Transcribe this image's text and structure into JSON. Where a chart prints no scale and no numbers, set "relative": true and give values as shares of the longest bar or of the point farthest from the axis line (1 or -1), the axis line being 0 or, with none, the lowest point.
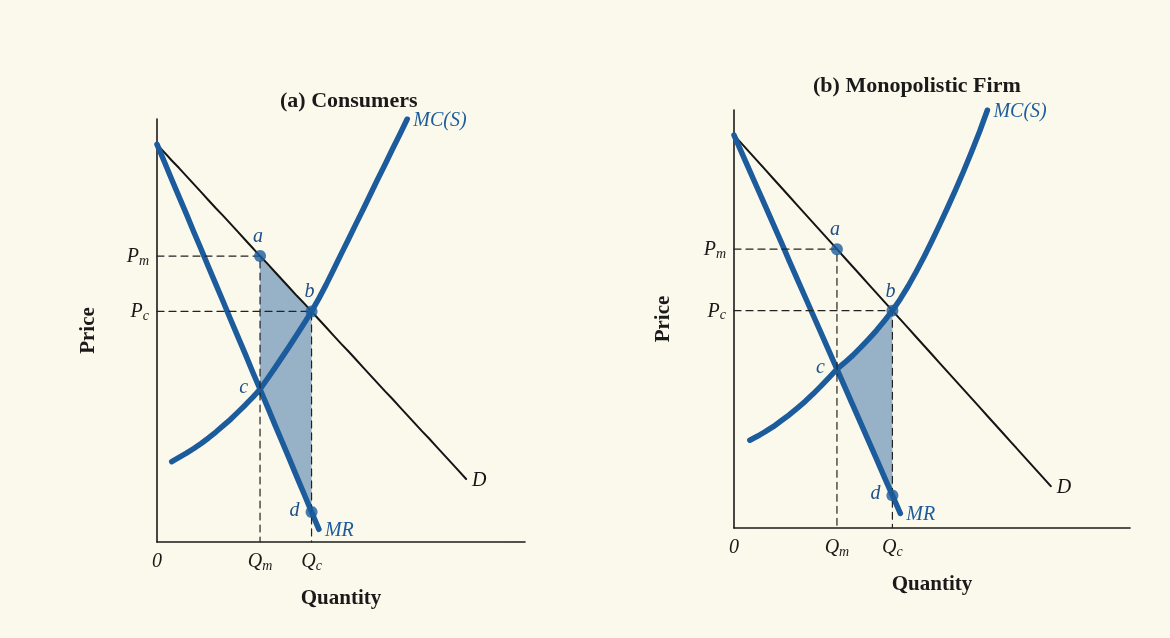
{
  "chart_data": [
    {
      "type": "line",
      "title": "(a) Consumers",
      "xlabel": "Quantity",
      "ylabel": "Price",
      "relative": true,
      "categories": [
        "0",
        null,
        null,
        null,
        null,
        null,
        null,
        null,
        null,
        null,
        null,
        null,
        null,
        null,
        "Q$_{m}$",
        null,
        null,
        null,
        null,
        null,
        null,
        "Q$_{c}$",
        null,
        null,
        null,
        null,
        null,
        null,
        null,
        null,
        null,
        null,
        null,
        null,
        null,
        null,
        null,
        null,
        null,
        null,
        null,
        null,
        null,
        null,
        null,
        null,
        null,
        null,
        null,
        null,
        null
      ],
      "series": [
        {
          "name": "D",
          "color": "#141414",
          "values": [
            0.94,
            0.921,
            0.902,
            0.884,
            0.865,
            0.846,
            0.827,
            0.808,
            0.789,
            0.771,
            0.752,
            0.733,
            0.714,
            0.695,
            0.676,
            0.658,
            0.639,
            0.62,
            0.601,
            0.582,
            0.564,
            0.545,
            0.526,
            0.507,
            0.488,
            0.469,
            0.451,
            0.432,
            0.413,
            0.394,
            0.375,
            0.356,
            0.338,
            0.319,
            0.3,
            0.281,
            0.262,
            0.244,
            0.225,
            0.206,
            0.187,
            0.168,
            0.149,
            null,
            null,
            null,
            null,
            null,
            null,
            null,
            null
          ]
        },
        {
          "name": "MR",
          "color": "#1d5c9c",
          "values": [
            0.94,
            0.899,
            0.857,
            0.816,
            0.775,
            0.733,
            0.692,
            0.65,
            0.609,
            0.568,
            0.526,
            0.485,
            0.444,
            0.402,
            0.361,
            0.32,
            0.278,
            0.237,
            0.196,
            0.154,
            0.113,
            0.071,
            0.03,
            null,
            null,
            null,
            null,
            null,
            null,
            null,
            null,
            null,
            null,
            null,
            null,
            null,
            null,
            null,
            null,
            null,
            null,
            null,
            null,
            null,
            null,
            null,
            null,
            null,
            null,
            null,
            null
          ],
          "upper": [
            null,
            null,
            null,
            null,
            null,
            null,
            null,
            null,
            null,
            null,
            null,
            null,
            null,
            null,
            0.676,
            0.658,
            0.639,
            0.62,
            0.601,
            0.582,
            0.564,
            0.545,
            null,
            null,
            null,
            null,
            null,
            null,
            null,
            null,
            null,
            null,
            null,
            null,
            null,
            null,
            null,
            null,
            null,
            null,
            null,
            null,
            null,
            null,
            null,
            null,
            null,
            null,
            null,
            null,
            null
          ],
          "lower": [
            null,
            null,
            null,
            null,
            null,
            null,
            null,
            null,
            null,
            null,
            null,
            null,
            null,
            null,
            0.361,
            0.32,
            0.278,
            0.237,
            0.196,
            0.154,
            0.113,
            0.071,
            null,
            null,
            null,
            null,
            null,
            null,
            null,
            null,
            null,
            null,
            null,
            null,
            null,
            null,
            null,
            null,
            null,
            null,
            null,
            null,
            null,
            null,
            null,
            null,
            null,
            null,
            null,
            null,
            null
          ]
        },
        {
          "name": "MC(S)",
          "color": "#1d5c9c",
          "values": [
            null,
            null,
            0.19,
            0.2,
            0.21,
            0.221,
            0.233,
            0.246,
            0.26,
            0.275,
            0.29,
            0.307,
            0.324,
            0.342,
            0.361,
            0.386,
            0.411,
            0.437,
            0.463,
            0.49,
            0.517,
            0.545,
            0.576,
            0.609,
            0.644,
            0.68,
            0.715,
            0.751,
            0.786,
            0.822,
            0.858,
            0.893,
            0.929,
            0.964,
            1.0,
            null,
            null,
            null,
            null,
            null,
            null,
            null,
            null,
            null,
            null,
            null,
            null,
            null,
            null,
            null,
            null
          ]
        },
        {
          "color": "#222222",
          "line_style": "dashed",
          "x": [
            "0",
            "Q$_{m}$",
            "Q$_{m}$"
          ],
          "values": [
            0.676,
            0.676,
            0
          ]
        },
        {
          "color": "#222222",
          "line_style": "dashed",
          "x": [
            "0",
            "Q$_{c}$",
            "Q$_{c}$"
          ],
          "values": [
            0.545,
            0.545,
            0
          ]
        },
        {
          "type": "scatter",
          "marker": "circle",
          "color": "#1d5c9c",
          "x": [
            "Q$_{m}$",
            "Q$_{c}$",
            "Q$_{c}$"
          ],
          "values": [
            0.676,
            0.545,
            0.071
          ]
        }
      ],
      "annotations": [
        {
          "text": "P$_{m}$",
          "x": "0",
          "y": 0.676
        },
        {
          "text": "P$_{c}$",
          "x": "0",
          "y": 0.545
        },
        {
          "text": "a",
          "x": "Q$_{m}$",
          "y": 0.676
        },
        {
          "text": "b",
          "x": "Q$_{c}$",
          "y": 0.545
        },
        {
          "text": "c",
          "x": "Q$_{m}$",
          "y": 0.361
        },
        {
          "text": "d",
          "x": "Q$_{c}$",
          "y": 0.071
        }
      ]
    },
    {
      "type": "line",
      "title": "(b) Monopolistic Firm",
      "xlabel": "Quantity",
      "ylabel": "Price",
      "relative": true,
      "categories": [
        "0",
        null,
        null,
        null,
        null,
        null,
        null,
        null,
        null,
        null,
        null,
        null,
        null,
        "Q$_{m}$",
        null,
        null,
        null,
        null,
        null,
        null,
        "Q$_{c}$",
        null,
        null,
        null,
        null,
        null,
        null,
        null,
        null,
        null,
        null,
        null,
        null,
        null,
        null,
        null,
        null,
        null,
        null,
        null,
        null,
        null,
        null,
        null,
        null,
        null,
        null,
        null,
        null,
        null,
        null
      ],
      "series": [
        {
          "name": "D",
          "color": "#141414",
          "values": [
            0.94,
            0.919,
            0.898,
            0.877,
            0.856,
            0.835,
            0.814,
            0.793,
            0.772,
            0.751,
            0.73,
            0.709,
            0.688,
            0.667,
            0.646,
            0.625,
            0.604,
            0.583,
            0.562,
            0.541,
            0.52,
            0.499,
            0.478,
            0.457,
            0.436,
            0.415,
            0.394,
            0.373,
            0.352,
            0.331,
            0.31,
            0.289,
            0.268,
            0.247,
            0.226,
            0.205,
            0.184,
            0.163,
            0.142,
            0.121,
            0.1,
            null,
            null,
            null,
            null,
            null,
            null,
            null,
            null,
            null,
            null
          ]
        },
        {
          "name": "MR",
          "color": "#1d5c9c",
          "values": [
            0.94,
            0.897,
            0.854,
            0.811,
            0.768,
            0.725,
            0.682,
            0.638,
            0.595,
            0.552,
            0.509,
            0.466,
            0.423,
            0.38,
            0.337,
            0.294,
            0.251,
            0.208,
            0.165,
            0.121,
            0.078,
            0.035,
            null,
            null,
            null,
            null,
            null,
            null,
            null,
            null,
            null,
            null,
            null,
            null,
            null,
            null,
            null,
            null,
            null,
            null,
            null,
            null,
            null,
            null,
            null,
            null,
            null,
            null,
            null,
            null,
            null
          ],
          "upper": [
            null,
            null,
            null,
            null,
            null,
            null,
            null,
            null,
            null,
            null,
            null,
            null,
            null,
            0.38,
            0.396,
            0.413,
            0.432,
            0.452,
            0.473,
            0.496,
            0.52,
            null,
            null,
            null,
            null,
            null,
            null,
            null,
            null,
            null,
            null,
            null,
            null,
            null,
            null,
            null,
            null,
            null,
            null,
            null,
            null,
            null,
            null,
            null,
            null,
            null,
            null,
            null,
            null,
            null,
            null
          ],
          "lower": [
            null,
            null,
            null,
            null,
            null,
            null,
            null,
            null,
            null,
            null,
            null,
            null,
            null,
            0.38,
            0.337,
            0.294,
            0.251,
            0.208,
            0.165,
            0.121,
            0.078,
            null,
            null,
            null,
            null,
            null,
            null,
            null,
            null,
            null,
            null,
            null,
            null,
            null,
            null,
            null,
            null,
            null,
            null,
            null,
            null,
            null,
            null,
            null,
            null,
            null,
            null,
            null,
            null,
            null,
            null
          ]
        },
        {
          "name": "MC(S)",
          "color": "#1d5c9c",
          "values": [
            null,
            null,
            0.21,
            0.22,
            0.231,
            0.243,
            0.257,
            0.271,
            0.287,
            0.303,
            0.321,
            0.34,
            0.36,
            0.38,
            0.396,
            0.413,
            0.432,
            0.452,
            0.473,
            0.496,
            0.52,
            0.548,
            0.579,
            0.613,
            0.649,
            0.687,
            0.727,
            0.768,
            0.81,
            0.854,
            0.9,
            0.948,
            1.0,
            null,
            null,
            null,
            null,
            null,
            null,
            null,
            null,
            null,
            null,
            null,
            null,
            null,
            null,
            null,
            null,
            null,
            null
          ]
        },
        {
          "color": "#222222",
          "line_style": "dashed",
          "x": [
            "0",
            "Q$_{m}$",
            "Q$_{m}$"
          ],
          "values": [
            0.667,
            0.667,
            0
          ]
        },
        {
          "color": "#222222",
          "line_style": "dashed",
          "x": [
            "0",
            "Q$_{c}$",
            "Q$_{c}$"
          ],
          "values": [
            0.52,
            0.52,
            0
          ]
        },
        {
          "type": "scatter",
          "marker": "circle",
          "color": "#1d5c9c",
          "x": [
            "Q$_{m}$",
            "Q$_{c}$",
            "Q$_{c}$"
          ],
          "values": [
            0.667,
            0.52,
            0.078
          ]
        }
      ],
      "annotations": [
        {
          "text": "P$_{m}$",
          "x": "0",
          "y": 0.667
        },
        {
          "text": "P$_{c}$",
          "x": "0",
          "y": 0.52
        },
        {
          "text": "a",
          "x": "Q$_{m}$",
          "y": 0.667
        },
        {
          "text": "b",
          "x": "Q$_{c}$",
          "y": 0.52
        },
        {
          "text": "c",
          "x": "Q$_{m}$",
          "y": 0.38
        },
        {
          "text": "d",
          "x": "Q$_{c}$",
          "y": 0.078
        }
      ]
    }
  ]
}
